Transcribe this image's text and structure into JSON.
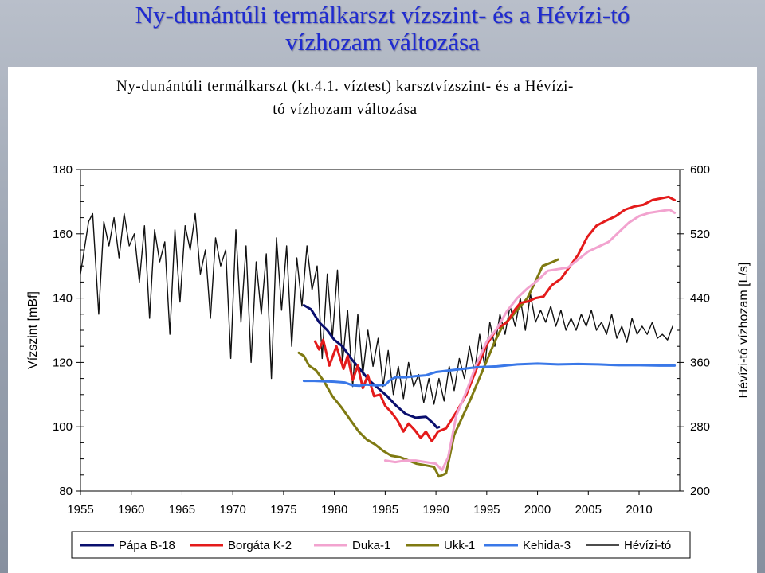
{
  "slide": {
    "title_line1": "Ny-dunántúli termálkarszt vízszint- és a Hévízi-tó",
    "title_line2": "vízhozam változása"
  },
  "colors": {
    "title": "#1f2bd0",
    "background": "#9aa3b1",
    "panel": "#ffffff"
  },
  "chart_data": {
    "type": "line",
    "title_line1": "Ny-dunántúli termálkarszt (kt.4.1. víztest) karsztvízszint- és a Hévízi-",
    "title_line2": "tó vízhozam változása",
    "ylabel": "Vízszint [mBf]",
    "y2label": "Hévízi-tó vízhozam [L/s]",
    "xlim": [
      1955,
      2014
    ],
    "ylim": [
      80,
      180
    ],
    "y2lim": [
      200,
      600
    ],
    "xticks": [
      "1955",
      "1960",
      "1965",
      "1970",
      "1975",
      "1980",
      "1985",
      "1990",
      "1995",
      "2000",
      "2005",
      "2010"
    ],
    "yticks": [
      "80",
      "100",
      "120",
      "140",
      "160",
      "180"
    ],
    "y2ticks": [
      "200",
      "280",
      "360",
      "440",
      "520",
      "600"
    ],
    "grid": false,
    "legend_position": "bottom",
    "series": [
      {
        "name": "Pápa B-18",
        "axis": "left",
        "color": "#0a0f6e",
        "x": [
          1977.0,
          1977.7,
          1978.5,
          1979.3,
          1980.0,
          1980.8,
          1981.7,
          1982.5,
          1983.4,
          1984.3,
          1985.2,
          1986.0,
          1987.0,
          1988.0,
          1989.0,
          1989.7,
          1990.1,
          1990.3
        ],
        "y": [
          137.8,
          136.5,
          132.5,
          130.0,
          127.0,
          125.0,
          121.0,
          118.0,
          114.5,
          112.0,
          109.5,
          106.8,
          104.0,
          102.8,
          103.1,
          101.2,
          99.7,
          99.9
        ]
      },
      {
        "name": "Borgáta K-2",
        "axis": "left",
        "color": "#e41b1b",
        "x": [
          1978.1,
          1978.5,
          1978.9,
          1979.5,
          1980.2,
          1980.9,
          1981.3,
          1981.8,
          1982.3,
          1982.8,
          1983.3,
          1983.9,
          1984.5,
          1985.0,
          1985.6,
          1986.2,
          1986.8,
          1987.3,
          1987.9,
          1988.5,
          1989.0,
          1989.6,
          1990.2,
          1991.0,
          1992.0,
          1993.0,
          1994.0,
          1995.0,
          1996.0,
          1997.0,
          1997.8,
          1998.3,
          1999.1,
          1999.8,
          2000.6,
          2001.4,
          2002.3,
          2003.1,
          2004.0,
          2004.9,
          2005.8,
          2006.7,
          2007.7,
          2008.6,
          2009.5,
          2010.4,
          2011.3,
          2012.1,
          2012.9,
          2013.5
        ],
        "y": [
          126.5,
          124.0,
          127.0,
          119.0,
          125.0,
          118.0,
          122.0,
          114.5,
          119.0,
          112.0,
          116.0,
          109.5,
          110.0,
          106.5,
          104.5,
          102.0,
          98.5,
          101.0,
          99.0,
          96.5,
          98.5,
          95.5,
          98.5,
          99.5,
          104.5,
          110.0,
          118.0,
          125.5,
          130.5,
          132.5,
          136.5,
          138.5,
          139.0,
          140.0,
          140.5,
          144.0,
          146.0,
          149.5,
          153.5,
          159.0,
          162.5,
          164.0,
          165.5,
          167.5,
          168.5,
          169.0,
          170.5,
          171.0,
          171.5,
          170.5
        ]
      },
      {
        "name": "Duka-1",
        "axis": "left",
        "color": "#f2a3cf",
        "x": [
          1985.0,
          1986.0,
          1987.0,
          1988.0,
          1989.0,
          1990.0,
          1990.6,
          1991.2,
          1992.0,
          1993.0,
          1994.0,
          1995.0,
          1996.0,
          1997.0,
          1998.0,
          1999.0,
          2000.0,
          2001.0,
          2002.0,
          2003.0,
          2004.0,
          2005.0,
          2006.0,
          2007.0,
          2008.0,
          2009.0,
          2010.0,
          2011.0,
          2012.0,
          2013.0,
          2013.5
        ],
        "y": [
          89.5,
          89.0,
          89.5,
          89.5,
          89.0,
          88.5,
          86.5,
          90.5,
          103.5,
          111.0,
          119.5,
          126.5,
          130.5,
          136.0,
          140.0,
          143.0,
          145.5,
          148.5,
          149.0,
          149.5,
          152.0,
          154.5,
          156.0,
          157.5,
          160.5,
          163.5,
          165.5,
          166.5,
          167.0,
          167.5,
          166.5
        ]
      },
      {
        "name": "Ukk-1",
        "axis": "left",
        "color": "#7f7a12",
        "x": [
          1976.5,
          1977.0,
          1977.5,
          1978.2,
          1979.0,
          1979.8,
          1980.7,
          1981.6,
          1982.4,
          1983.2,
          1984.0,
          1984.8,
          1985.6,
          1986.5,
          1987.3,
          1988.1,
          1989.0,
          1989.8,
          1990.3,
          1991.0,
          1991.8,
          1992.6,
          1993.4,
          1994.2,
          1995.0,
          1995.8,
          1996.6,
          1997.4,
          1998.2,
          1999.0,
          1999.7,
          2000.5,
          2001.3,
          2002.0
        ],
        "y": [
          123.0,
          122.0,
          119.0,
          117.5,
          114.0,
          109.5,
          106.0,
          102.0,
          98.5,
          96.0,
          94.5,
          92.5,
          91.0,
          90.5,
          89.5,
          88.5,
          88.0,
          87.5,
          84.5,
          85.5,
          97.5,
          103.0,
          108.5,
          114.5,
          120.5,
          126.5,
          131.5,
          134.0,
          137.0,
          140.0,
          144.5,
          150.0,
          151.0,
          152.0
        ]
      },
      {
        "name": "Kehida-3",
        "axis": "right",
        "color": "#3a78e8",
        "x": [
          1977.0,
          1978.0,
          1979.0,
          1980.0,
          1981.0,
          1981.8,
          1982.5,
          1983.2,
          1984.0,
          1985.0,
          1985.5,
          1986.0,
          1987.0,
          1988.0,
          1989.0,
          1990.0,
          1992.0,
          1994.0,
          1996.0,
          1998.0,
          2000.0,
          2002.0,
          2004.0,
          2006.0,
          2008.0,
          2010.0,
          2012.0,
          2013.5
        ],
        "y": [
          337.0,
          337.0,
          336.5,
          336.0,
          335.0,
          331.5,
          331.0,
          332.5,
          331.5,
          332.0,
          338.0,
          341.5,
          341.5,
          343.0,
          344.0,
          348.0,
          351.0,
          354.0,
          355.0,
          357.5,
          358.5,
          357.5,
          358.0,
          357.5,
          356.5,
          356.5,
          356.0,
          356.0
        ]
      },
      {
        "name": "Hévízi-tó",
        "axis": "right",
        "color": "#111111",
        "x": [
          1955.0,
          1955.8,
          1956.2,
          1956.8,
          1957.3,
          1957.8,
          1958.3,
          1958.8,
          1959.3,
          1959.8,
          1960.3,
          1960.8,
          1961.3,
          1961.8,
          1962.3,
          1962.8,
          1963.3,
          1963.8,
          1964.3,
          1964.8,
          1965.3,
          1965.8,
          1966.3,
          1966.8,
          1967.3,
          1967.8,
          1968.3,
          1968.8,
          1969.3,
          1969.8,
          1970.3,
          1970.8,
          1971.3,
          1971.8,
          1972.3,
          1972.8,
          1973.3,
          1973.8,
          1974.3,
          1974.8,
          1975.3,
          1975.8,
          1976.3,
          1976.8,
          1977.3,
          1977.8,
          1978.3,
          1978.8,
          1979.3,
          1979.8,
          1980.3,
          1980.8,
          1981.3,
          1981.8,
          1982.3,
          1982.8,
          1983.3,
          1983.8,
          1984.3,
          1984.8,
          1985.3,
          1985.8,
          1986.3,
          1986.8,
          1987.3,
          1987.8,
          1988.3,
          1988.8,
          1989.3,
          1989.8,
          1990.3,
          1990.8,
          1991.3,
          1991.8,
          1992.3,
          1992.8,
          1993.3,
          1993.8,
          1994.3,
          1994.8,
          1995.3,
          1995.8,
          1996.3,
          1996.8,
          1997.3,
          1997.8,
          1998.3,
          1998.8,
          1999.3,
          1999.8,
          2000.3,
          2000.8,
          2001.3,
          2001.8,
          2002.3,
          2002.8,
          2003.3,
          2003.8,
          2004.3,
          2004.8,
          2005.3,
          2005.8,
          2006.3,
          2006.8,
          2007.3,
          2007.8,
          2008.3,
          2008.8,
          2009.3,
          2009.8,
          2010.3,
          2010.8,
          2011.3,
          2011.8,
          2012.3,
          2012.8,
          2013.3
        ],
        "y": [
          470,
          535,
          545,
          420,
          535,
          505,
          540,
          490,
          545,
          505,
          520,
          460,
          530,
          415,
          525,
          485,
          510,
          395,
          525,
          435,
          530,
          500,
          545,
          470,
          500,
          415,
          515,
          480,
          500,
          365,
          525,
          410,
          505,
          360,
          485,
          420,
          495,
          340,
          515,
          425,
          505,
          380,
          490,
          430,
          505,
          450,
          480,
          365,
          470,
          390,
          475,
          360,
          425,
          330,
          420,
          345,
          400,
          355,
          390,
          330,
          375,
          320,
          355,
          315,
          360,
          330,
          345,
          310,
          340,
          308,
          340,
          312,
          355,
          325,
          365,
          340,
          380,
          348,
          395,
          355,
          410,
          380,
          420,
          395,
          430,
          405,
          440,
          400,
          445,
          410,
          425,
          410,
          430,
          405,
          425,
          400,
          415,
          400,
          420,
          405,
          425,
          400,
          410,
          395,
          420,
          390,
          405,
          385,
          415,
          395,
          405,
          395,
          410,
          390,
          395,
          388,
          405
        ]
      }
    ]
  }
}
